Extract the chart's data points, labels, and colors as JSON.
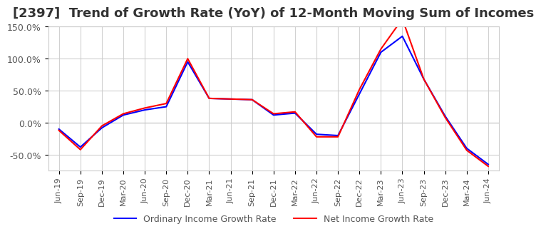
{
  "title": "[2397]  Trend of Growth Rate (YoY) of 12-Month Moving Sum of Incomes",
  "title_fontsize": 13,
  "legend_labels": [
    "Ordinary Income Growth Rate",
    "Net Income Growth Rate"
  ],
  "legend_colors": [
    "blue",
    "red"
  ],
  "background_color": "#ffffff",
  "grid_color": "#cccccc",
  "x_labels": [
    "Jun-19",
    "Sep-19",
    "Dec-19",
    "Mar-20",
    "Jun-20",
    "Sep-20",
    "Dec-20",
    "Mar-21",
    "Jun-21",
    "Sep-21",
    "Dec-21",
    "Mar-22",
    "Jun-22",
    "Sep-22",
    "Dec-22",
    "Mar-23",
    "Jun-23",
    "Sep-23",
    "Dec-23",
    "Mar-24",
    "Jun-24"
  ],
  "ordinary_income": [
    -0.1,
    -0.38,
    -0.08,
    0.12,
    0.2,
    0.25,
    0.95,
    0.38,
    0.37,
    0.36,
    0.12,
    0.15,
    -0.18,
    -0.2,
    0.45,
    1.1,
    1.35,
    0.68,
    0.1,
    -0.4,
    -0.65
  ],
  "net_income": [
    -0.12,
    -0.42,
    -0.05,
    0.14,
    0.23,
    0.3,
    1.0,
    0.38,
    0.37,
    0.36,
    0.14,
    0.17,
    -0.22,
    -0.22,
    0.52,
    1.15,
    1.62,
    0.68,
    0.08,
    -0.43,
    -0.68
  ],
  "ylim": [
    -0.75,
    0.9
  ],
  "ytick_vals": [
    -0.5,
    0.0,
    0.5,
    1.0,
    1.5
  ],
  "ytick_labels": [
    "-50.0%",
    "0.0%",
    "50.0%",
    "100.0%",
    "150.0%"
  ],
  "line_width": 1.5
}
